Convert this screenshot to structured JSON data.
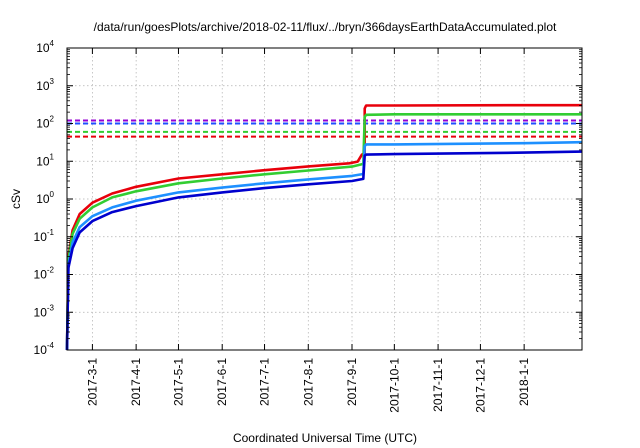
{
  "chart_data": {
    "type": "line",
    "title": "/data/run/goesPlots/archive/2018-02-11/flux/../bryn/366daysEarthDataAccumulated.plot",
    "xlabel": "Coordinated Universal Time (UTC)",
    "ylabel": "cSv",
    "x_range": [
      "2017-02-11",
      "2018-02-11"
    ],
    "y_range": [
      0.0001,
      10000
    ],
    "y_scale": "log",
    "grid": true,
    "legend": "none",
    "x_ticks": [
      "2017-3-1",
      "2017-4-1",
      "2017-5-1",
      "2017-6-1",
      "2017-7-1",
      "2017-8-1",
      "2017-9-1",
      "2017-10-1",
      "2017-11-1",
      "2017-12-1",
      "2018-1-1"
    ],
    "y_ticks": [
      {
        "value": 0.0001,
        "mantissa": "10",
        "exp": "-4"
      },
      {
        "value": 0.001,
        "mantissa": "10",
        "exp": "-3"
      },
      {
        "value": 0.01,
        "mantissa": "10",
        "exp": "-2"
      },
      {
        "value": 0.1,
        "mantissa": "10",
        "exp": "-1"
      },
      {
        "value": 1,
        "mantissa": "10",
        "exp": "0"
      },
      {
        "value": 10,
        "mantissa": "10",
        "exp": "1"
      },
      {
        "value": 100,
        "mantissa": "10",
        "exp": "2"
      },
      {
        "value": 1000,
        "mantissa": "10",
        "exp": "3"
      },
      {
        "value": 10000,
        "mantissa": "10",
        "exp": "4"
      }
    ],
    "reference_lines": [
      {
        "y": 120,
        "color": "#9400d3"
      },
      {
        "y": 100,
        "color": "#1f4fff"
      },
      {
        "y": 60,
        "color": "#32cd32"
      },
      {
        "y": 45,
        "color": "#e8000b"
      }
    ],
    "series": [
      {
        "color": "#e8000b",
        "points": [
          [
            "2017-02-11",
            0.0001
          ],
          [
            "2017-02-12",
            0.03
          ],
          [
            "2017-02-15",
            0.15
          ],
          [
            "2017-02-20",
            0.4
          ],
          [
            "2017-03-01",
            0.8
          ],
          [
            "2017-03-15",
            1.4
          ],
          [
            "2017-04-01",
            2.1
          ],
          [
            "2017-05-01",
            3.5
          ],
          [
            "2017-06-01",
            4.5
          ],
          [
            "2017-07-01",
            5.8
          ],
          [
            "2017-08-01",
            7.3
          ],
          [
            "2017-08-30",
            8.8
          ],
          [
            "2017-09-05",
            9.8
          ],
          [
            "2017-09-08",
            15
          ],
          [
            "2017-09-10",
            16
          ],
          [
            "2017-09-10",
            250
          ],
          [
            "2017-09-11",
            300
          ],
          [
            "2017-10-01",
            300
          ],
          [
            "2018-01-01",
            305
          ],
          [
            "2018-02-11",
            305
          ]
        ]
      },
      {
        "color": "#32cd32",
        "points": [
          [
            "2017-02-11",
            0.0001
          ],
          [
            "2017-02-12",
            0.025
          ],
          [
            "2017-02-15",
            0.12
          ],
          [
            "2017-02-20",
            0.3
          ],
          [
            "2017-03-01",
            0.6
          ],
          [
            "2017-03-15",
            1.1
          ],
          [
            "2017-04-01",
            1.6
          ],
          [
            "2017-05-01",
            2.6
          ],
          [
            "2017-06-01",
            3.5
          ],
          [
            "2017-07-01",
            4.5
          ],
          [
            "2017-08-01",
            5.7
          ],
          [
            "2017-09-01",
            7.2
          ],
          [
            "2017-09-09",
            8.5
          ],
          [
            "2017-09-10",
            150
          ],
          [
            "2017-09-11",
            170
          ],
          [
            "2017-10-01",
            175
          ],
          [
            "2018-01-01",
            175
          ],
          [
            "2018-02-11",
            175
          ]
        ]
      },
      {
        "color": "#1e90ff",
        "points": [
          [
            "2017-02-11",
            0.0001
          ],
          [
            "2017-02-12",
            0.018
          ],
          [
            "2017-02-15",
            0.07
          ],
          [
            "2017-02-20",
            0.18
          ],
          [
            "2017-03-01",
            0.35
          ],
          [
            "2017-03-15",
            0.6
          ],
          [
            "2017-04-01",
            0.9
          ],
          [
            "2017-05-01",
            1.5
          ],
          [
            "2017-06-01",
            2.0
          ],
          [
            "2017-07-01",
            2.6
          ],
          [
            "2017-08-01",
            3.3
          ],
          [
            "2017-09-01",
            4.1
          ],
          [
            "2017-09-09",
            4.6
          ],
          [
            "2017-09-10",
            25
          ],
          [
            "2017-09-11",
            28
          ],
          [
            "2017-10-01",
            28
          ],
          [
            "2018-01-01",
            30
          ],
          [
            "2018-02-11",
            32
          ]
        ]
      },
      {
        "color": "#0000cd",
        "points": [
          [
            "2017-02-11",
            0.0001
          ],
          [
            "2017-02-12",
            0.015
          ],
          [
            "2017-02-15",
            0.05
          ],
          [
            "2017-02-20",
            0.13
          ],
          [
            "2017-03-01",
            0.26
          ],
          [
            "2017-03-15",
            0.45
          ],
          [
            "2017-04-01",
            0.65
          ],
          [
            "2017-05-01",
            1.1
          ],
          [
            "2017-06-01",
            1.5
          ],
          [
            "2017-07-01",
            1.95
          ],
          [
            "2017-08-01",
            2.45
          ],
          [
            "2017-09-01",
            3.0
          ],
          [
            "2017-09-09",
            3.4
          ],
          [
            "2017-09-10",
            14
          ],
          [
            "2017-09-11",
            15
          ],
          [
            "2017-10-01",
            15.5
          ],
          [
            "2018-01-01",
            17
          ],
          [
            "2018-02-11",
            18
          ]
        ]
      }
    ]
  }
}
